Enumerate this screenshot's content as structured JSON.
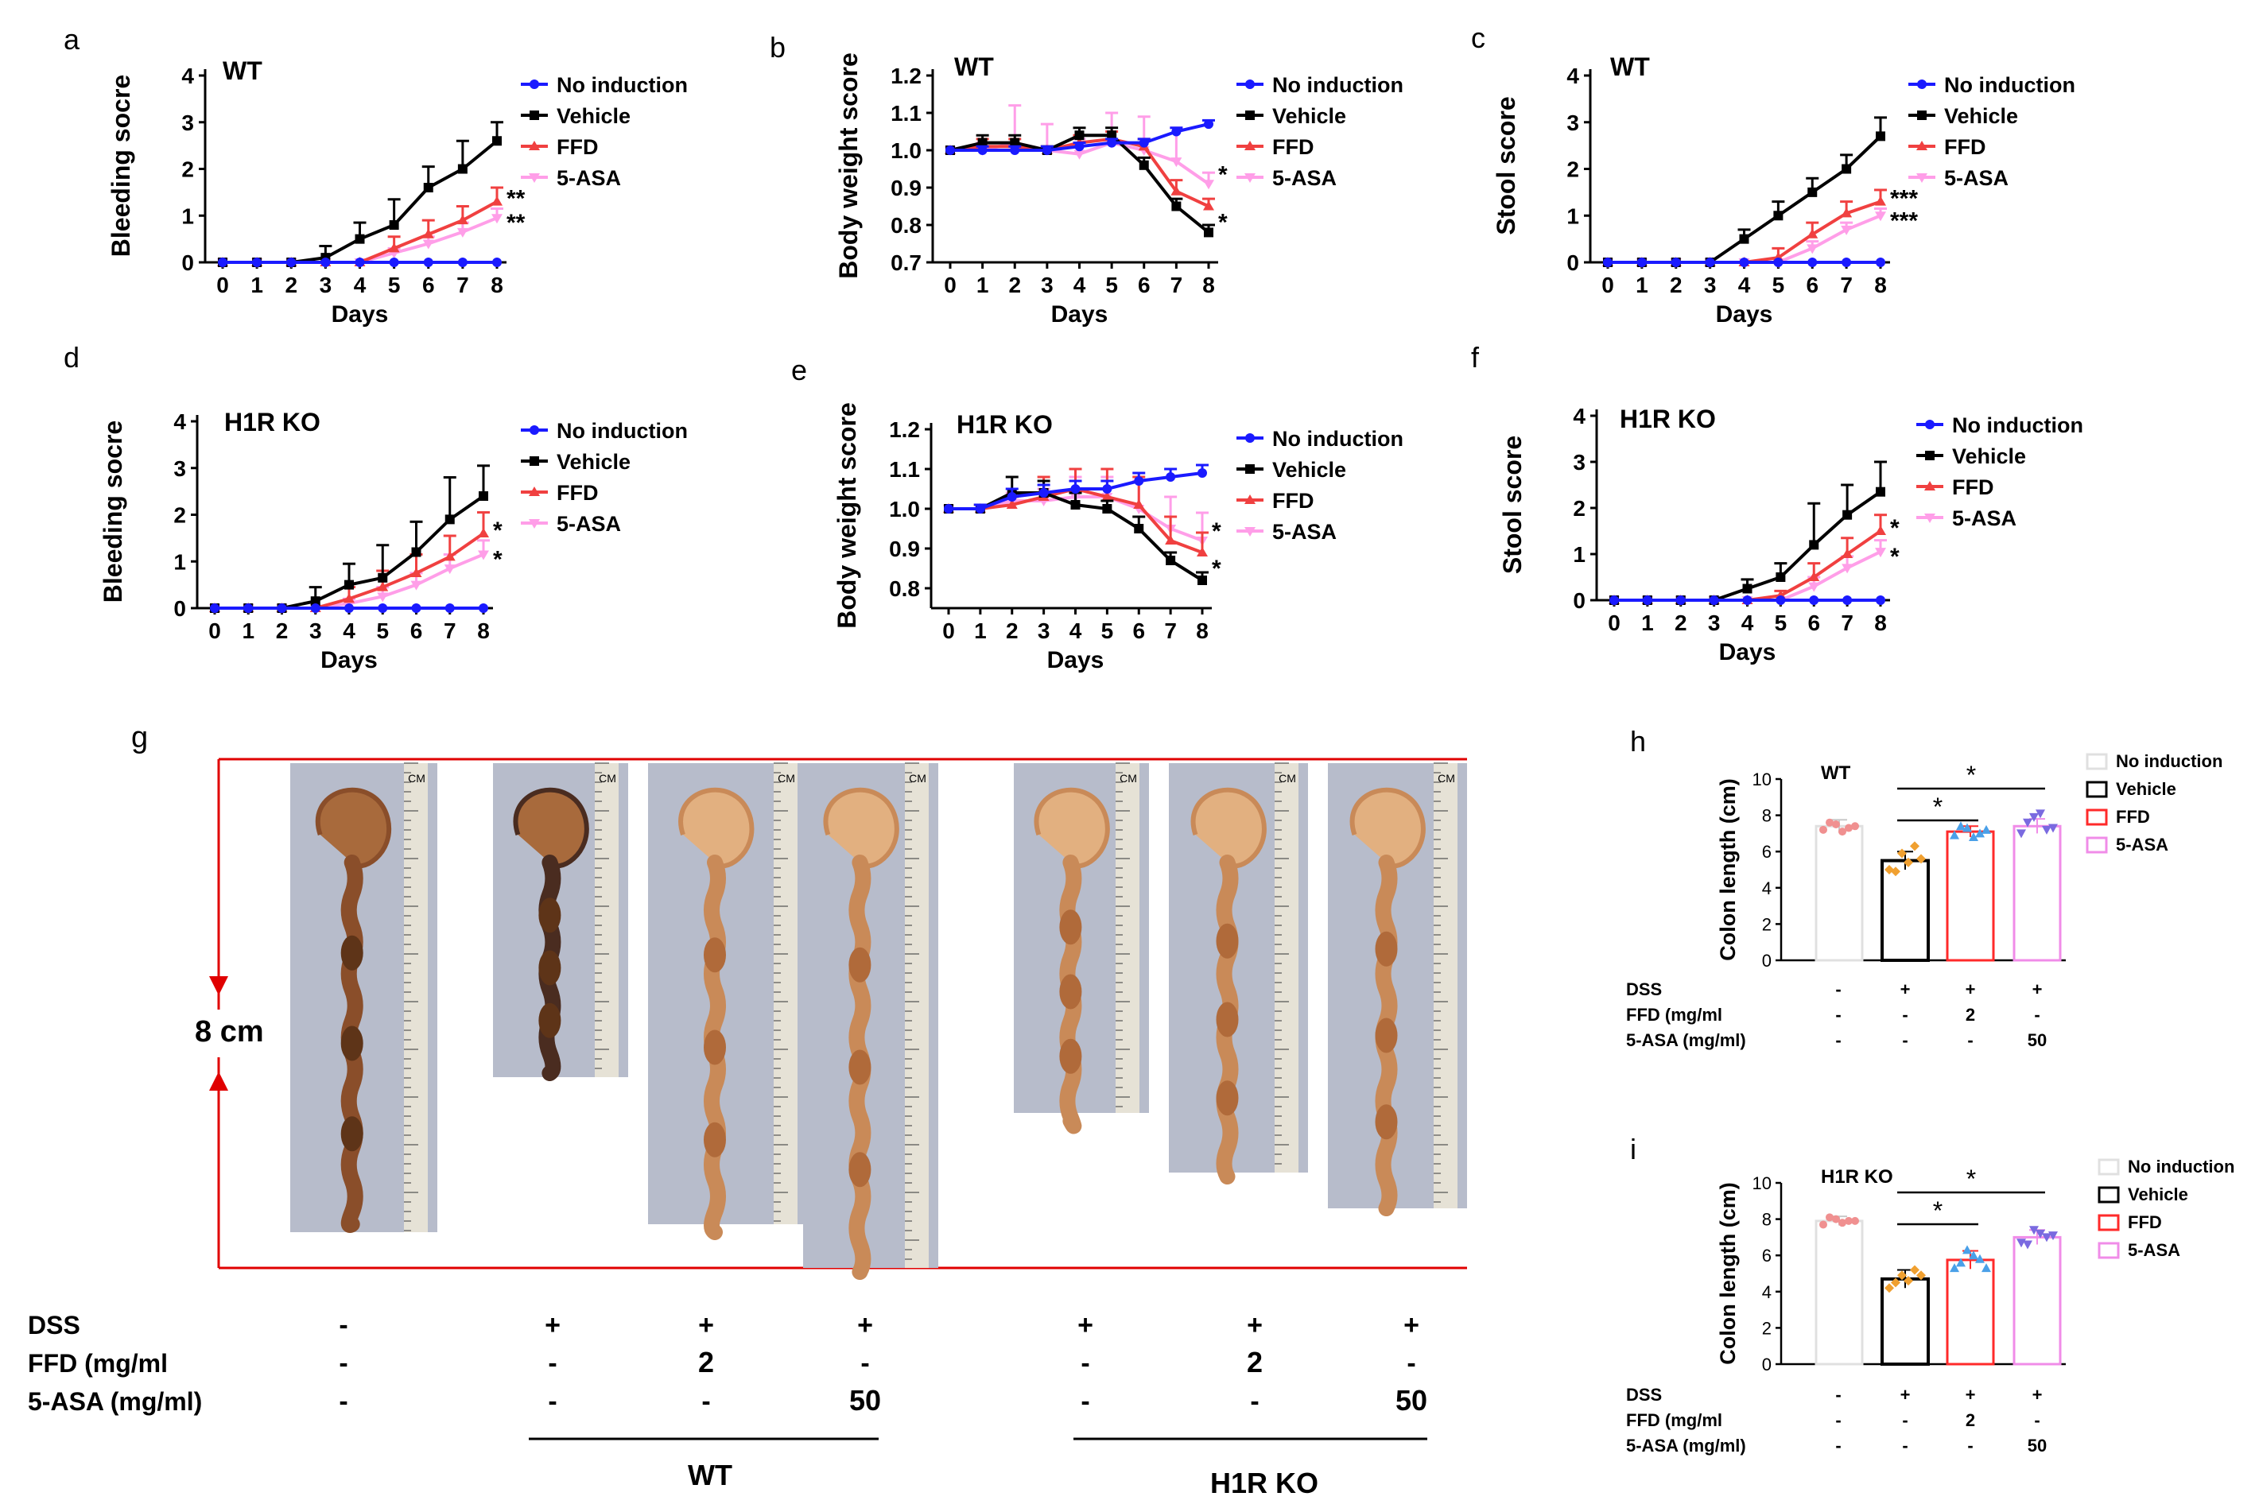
{
  "figure": {
    "panel_letters": [
      "a",
      "b",
      "c",
      "d",
      "e",
      "f",
      "g",
      "h",
      "i"
    ],
    "line_legend": [
      "No induction",
      "Vehicle",
      "FFD",
      "5-ASA"
    ],
    "bar_legend": [
      "No induction",
      "Vehicle",
      "FFD",
      "5-ASA"
    ],
    "colors": {
      "no_induction": "#1a1aff",
      "vehicle": "#000000",
      "ffd": "#f04040",
      "asa": "#ff9ee8",
      "bar_no_induction": "#e0e0e0",
      "bar_vehicle": "#000000",
      "bar_ffd": "#ff2a2a",
      "bar_asa": "#f08ce8",
      "dot_no_induction": "#f09090",
      "dot_vehicle": "#f0a030",
      "dot_ffd": "#4aa0e8",
      "dot_asa": "#7a6ae0",
      "bracket": "#e00000"
    },
    "photo_panel": {
      "scale_label": "8 cm",
      "ruler_label": "CM",
      "row_labels": [
        "DSS",
        "FFD (mg/ml",
        "5-ASA (mg/ml)"
      ],
      "columns": [
        {
          "dss": "-",
          "ffd": "-",
          "asa": "-"
        },
        {
          "dss": "+",
          "ffd": "-",
          "asa": "-"
        },
        {
          "dss": "+",
          "ffd": "2",
          "asa": "-"
        },
        {
          "dss": "+",
          "ffd": "-",
          "asa": "50"
        },
        {
          "dss": "+",
          "ffd": "-",
          "asa": "-"
        },
        {
          "dss": "+",
          "ffd": "2",
          "asa": "-"
        },
        {
          "dss": "+",
          "ffd": "-",
          "asa": "50"
        }
      ],
      "groups": [
        "WT",
        "H1R KO"
      ]
    },
    "bar_table": {
      "row_labels": [
        "DSS",
        "FFD (mg/ml",
        "5-ASA (mg/ml)"
      ],
      "columns": [
        {
          "dss": "-",
          "ffd": "-",
          "asa": "-"
        },
        {
          "dss": "+",
          "ffd": "-",
          "asa": "-"
        },
        {
          "dss": "+",
          "ffd": "2",
          "asa": "-"
        },
        {
          "dss": "+",
          "ffd": "-",
          "asa": "50"
        }
      ]
    }
  },
  "chart_data": [
    {
      "id": "a",
      "type": "line",
      "title": "WT",
      "xlabel": "Days",
      "ylabel": "Bleeding socre",
      "x": [
        0,
        1,
        2,
        3,
        4,
        5,
        6,
        7,
        8
      ],
      "ylim": [
        0,
        4
      ],
      "yticks": [
        "0",
        "1",
        "2",
        "3",
        "4"
      ],
      "series": [
        {
          "name": "No induction",
          "values": [
            0,
            0,
            0,
            0,
            0,
            0,
            0,
            0,
            0
          ]
        },
        {
          "name": "Vehicle",
          "values": [
            0,
            0,
            0,
            0.1,
            0.5,
            0.8,
            1.6,
            2.0,
            2.6
          ],
          "err": [
            0,
            0,
            0,
            0.25,
            0.35,
            0.55,
            0.45,
            0.6,
            0.4
          ]
        },
        {
          "name": "FFD",
          "values": [
            0,
            0,
            0,
            0,
            0,
            0.3,
            0.6,
            0.9,
            1.3
          ],
          "err": [
            0,
            0,
            0,
            0,
            0,
            0.25,
            0.3,
            0.3,
            0.3
          ]
        },
        {
          "name": "5-ASA",
          "values": [
            0,
            0,
            0,
            0,
            0,
            0.2,
            0.4,
            0.65,
            0.95
          ],
          "err": [
            0,
            0,
            0,
            0,
            0,
            0.1,
            0.15,
            0.2,
            0.2
          ]
        }
      ],
      "annotations": [
        "**",
        "**"
      ]
    },
    {
      "id": "b",
      "type": "line",
      "title": "WT",
      "xlabel": "Days",
      "ylabel": "Body weight score",
      "x": [
        0,
        1,
        2,
        3,
        4,
        5,
        6,
        7,
        8
      ],
      "ylim": [
        0.7,
        1.2
      ],
      "yticks": [
        "0.7",
        "0.8",
        "0.9",
        "1.0",
        "1.1",
        "1.2"
      ],
      "series": [
        {
          "name": "No induction",
          "values": [
            1.0,
            1.0,
            1.0,
            1.0,
            1.01,
            1.02,
            1.02,
            1.05,
            1.07
          ],
          "err": [
            0,
            0.01,
            0.01,
            0.01,
            0.01,
            0.01,
            0.01,
            0.01,
            0.01
          ]
        },
        {
          "name": "Vehicle",
          "values": [
            1.0,
            1.02,
            1.02,
            1.0,
            1.04,
            1.04,
            0.96,
            0.85,
            0.78
          ],
          "err": [
            0,
            0.02,
            0.02,
            0.01,
            0.02,
            0.02,
            0.02,
            0.02,
            0.02
          ]
        },
        {
          "name": "FFD",
          "values": [
            1.0,
            1.01,
            1.01,
            1.0,
            1.02,
            1.03,
            1.01,
            0.89,
            0.85
          ],
          "err": [
            0,
            0.02,
            0.02,
            0.01,
            0.02,
            0.02,
            0.02,
            0.03,
            0.02
          ]
        },
        {
          "name": "5-ASA",
          "values": [
            1.0,
            1.0,
            1.02,
            1.0,
            0.99,
            1.02,
            1.0,
            0.97,
            0.91
          ],
          "err": [
            0,
            0.02,
            0.1,
            0.07,
            0.04,
            0.08,
            0.09,
            0.09,
            0.03
          ]
        }
      ],
      "annotations": [
        "*",
        "*"
      ]
    },
    {
      "id": "c",
      "type": "line",
      "title": "WT",
      "xlabel": "Days",
      "ylabel": "Stool score",
      "x": [
        0,
        1,
        2,
        3,
        4,
        5,
        6,
        7,
        8
      ],
      "ylim": [
        0,
        4
      ],
      "yticks": [
        "0",
        "1",
        "2",
        "3",
        "4"
      ],
      "series": [
        {
          "name": "No induction",
          "values": [
            0,
            0,
            0,
            0,
            0,
            0,
            0,
            0,
            0
          ]
        },
        {
          "name": "Vehicle",
          "values": [
            0,
            0,
            0,
            0,
            0.5,
            1.0,
            1.5,
            2.0,
            2.7
          ],
          "err": [
            0,
            0,
            0,
            0,
            0.2,
            0.3,
            0.3,
            0.3,
            0.4
          ]
        },
        {
          "name": "FFD",
          "values": [
            0,
            0,
            0,
            0,
            0,
            0.1,
            0.6,
            1.05,
            1.3
          ],
          "err": [
            0,
            0,
            0,
            0,
            0,
            0.2,
            0.25,
            0.25,
            0.25
          ]
        },
        {
          "name": "5-ASA",
          "values": [
            0,
            0,
            0,
            0,
            0,
            0,
            0.3,
            0.7,
            1.0
          ],
          "err": [
            0,
            0,
            0,
            0,
            0,
            0,
            0.15,
            0.15,
            0.15
          ]
        }
      ],
      "annotations": [
        "***",
        "***"
      ]
    },
    {
      "id": "d",
      "type": "line",
      "title": "H1R KO",
      "xlabel": "Days",
      "ylabel": "Bleeding socre",
      "x": [
        0,
        1,
        2,
        3,
        4,
        5,
        6,
        7,
        8
      ],
      "ylim": [
        0,
        4
      ],
      "yticks": [
        "0",
        "1",
        "2",
        "3",
        "4"
      ],
      "series": [
        {
          "name": "No induction",
          "values": [
            0,
            0,
            0,
            0,
            0,
            0,
            0,
            0,
            0
          ]
        },
        {
          "name": "Vehicle",
          "values": [
            0,
            0,
            0,
            0.15,
            0.5,
            0.65,
            1.2,
            1.9,
            2.4
          ],
          "err": [
            0,
            0,
            0,
            0.3,
            0.45,
            0.7,
            0.65,
            0.9,
            0.65
          ]
        },
        {
          "name": "FFD",
          "values": [
            0,
            0,
            0,
            0,
            0.2,
            0.45,
            0.75,
            1.1,
            1.6
          ],
          "err": [
            0,
            0,
            0,
            0,
            0.25,
            0.35,
            0.4,
            0.45,
            0.45
          ]
        },
        {
          "name": "5-ASA",
          "values": [
            0,
            0,
            0,
            0,
            0.1,
            0.25,
            0.5,
            0.85,
            1.15
          ],
          "err": [
            0,
            0,
            0,
            0,
            0.1,
            0.2,
            0.25,
            0.3,
            0.3
          ]
        }
      ],
      "annotations": [
        "*",
        "*"
      ]
    },
    {
      "id": "e",
      "type": "line",
      "title": "H1R KO",
      "xlabel": "Days",
      "ylabel": "Body weight score",
      "x": [
        0,
        1,
        2,
        3,
        4,
        5,
        6,
        7,
        8
      ],
      "ylim": [
        0.75,
        1.2
      ],
      "yticks": [
        "0.8",
        "0.9",
        "1.0",
        "1.1",
        "1.2"
      ],
      "series": [
        {
          "name": "No induction",
          "values": [
            1.0,
            1.0,
            1.03,
            1.04,
            1.05,
            1.05,
            1.07,
            1.08,
            1.09
          ],
          "err": [
            0,
            0.01,
            0.02,
            0.02,
            0.02,
            0.02,
            0.02,
            0.02,
            0.02
          ]
        },
        {
          "name": "Vehicle",
          "values": [
            1.0,
            1.0,
            1.04,
            1.04,
            1.01,
            1.0,
            0.95,
            0.87,
            0.82
          ],
          "err": [
            0,
            0.01,
            0.04,
            0.03,
            0.03,
            0.02,
            0.03,
            0.02,
            0.02
          ]
        },
        {
          "name": "FFD",
          "values": [
            1.0,
            1.0,
            1.01,
            1.03,
            1.05,
            1.03,
            1.01,
            0.92,
            0.89
          ],
          "err": [
            0,
            0.01,
            0.02,
            0.05,
            0.05,
            0.07,
            0.07,
            0.06,
            0.05
          ]
        },
        {
          "name": "5-ASA",
          "values": [
            1.0,
            1.0,
            1.02,
            1.02,
            1.03,
            1.03,
            1.0,
            0.95,
            0.92
          ],
          "err": [
            0,
            0.01,
            0.02,
            0.03,
            0.05,
            0.05,
            0.07,
            0.08,
            0.07
          ]
        }
      ],
      "annotations": [
        "*",
        "*"
      ]
    },
    {
      "id": "f",
      "type": "line",
      "title": "H1R KO",
      "xlabel": "Days",
      "ylabel": "Stool score",
      "x": [
        0,
        1,
        2,
        3,
        4,
        5,
        6,
        7,
        8
      ],
      "ylim": [
        0,
        4
      ],
      "yticks": [
        "0",
        "1",
        "2",
        "3",
        "4"
      ],
      "series": [
        {
          "name": "No induction",
          "values": [
            0,
            0,
            0,
            0,
            0,
            0,
            0,
            0,
            0
          ]
        },
        {
          "name": "Vehicle",
          "values": [
            0,
            0,
            0,
            0,
            0.25,
            0.5,
            1.2,
            1.85,
            2.35
          ],
          "err": [
            0,
            0,
            0,
            0,
            0.2,
            0.3,
            0.9,
            0.65,
            0.65
          ]
        },
        {
          "name": "FFD",
          "values": [
            0,
            0,
            0,
            0,
            0,
            0.1,
            0.5,
            1.0,
            1.5
          ],
          "err": [
            0,
            0,
            0,
            0,
            0,
            0.1,
            0.3,
            0.35,
            0.35
          ]
        },
        {
          "name": "5-ASA",
          "values": [
            0,
            0,
            0,
            0,
            0,
            0,
            0.3,
            0.7,
            1.05
          ],
          "err": [
            0,
            0,
            0,
            0,
            0,
            0,
            0.2,
            0.25,
            0.25
          ]
        }
      ],
      "annotations": [
        "*",
        "*"
      ]
    },
    {
      "id": "h",
      "type": "bar",
      "title": "WT",
      "ylabel": "Colon length (cm)",
      "categories": [
        "No induction",
        "Vehicle",
        "FFD",
        "5-ASA"
      ],
      "values": [
        7.4,
        5.5,
        7.1,
        7.4
      ],
      "err": [
        0.35,
        0.5,
        0.3,
        0.4
      ],
      "ylim": [
        0,
        10
      ],
      "yticks": [
        "0",
        "2",
        "4",
        "6",
        "8",
        "10"
      ],
      "points": [
        [
          7.2,
          7.5,
          7.3,
          7.6,
          7.1,
          7.4
        ],
        [
          5.0,
          5.9,
          6.3,
          4.9,
          5.4,
          5.6
        ],
        [
          6.9,
          7.3,
          7.0,
          7.4,
          6.8,
          7.2
        ],
        [
          7.0,
          7.9,
          7.2,
          7.6,
          8.1,
          7.3
        ]
      ],
      "significance": [
        "*",
        "*"
      ]
    },
    {
      "id": "i",
      "type": "bar",
      "title": "H1R KO",
      "ylabel": "Colon length (cm)",
      "categories": [
        "No induction",
        "Vehicle",
        "FFD",
        "5-ASA"
      ],
      "values": [
        7.9,
        4.7,
        5.75,
        7.0
      ],
      "err": [
        0.25,
        0.5,
        0.5,
        0.4
      ],
      "ylim": [
        0,
        10
      ],
      "yticks": [
        "0",
        "2",
        "4",
        "6",
        "8",
        "10"
      ],
      "points": [
        [
          7.7,
          8.0,
          7.9,
          8.1,
          7.8,
          7.9
        ],
        [
          4.2,
          4.9,
          5.2,
          4.5,
          4.6,
          4.9
        ],
        [
          5.3,
          6.3,
          5.8,
          5.6,
          6.0,
          5.3
        ],
        [
          6.7,
          7.4,
          7.0,
          6.6,
          7.2,
          7.1
        ]
      ],
      "significance": [
        "*",
        "*"
      ]
    }
  ]
}
